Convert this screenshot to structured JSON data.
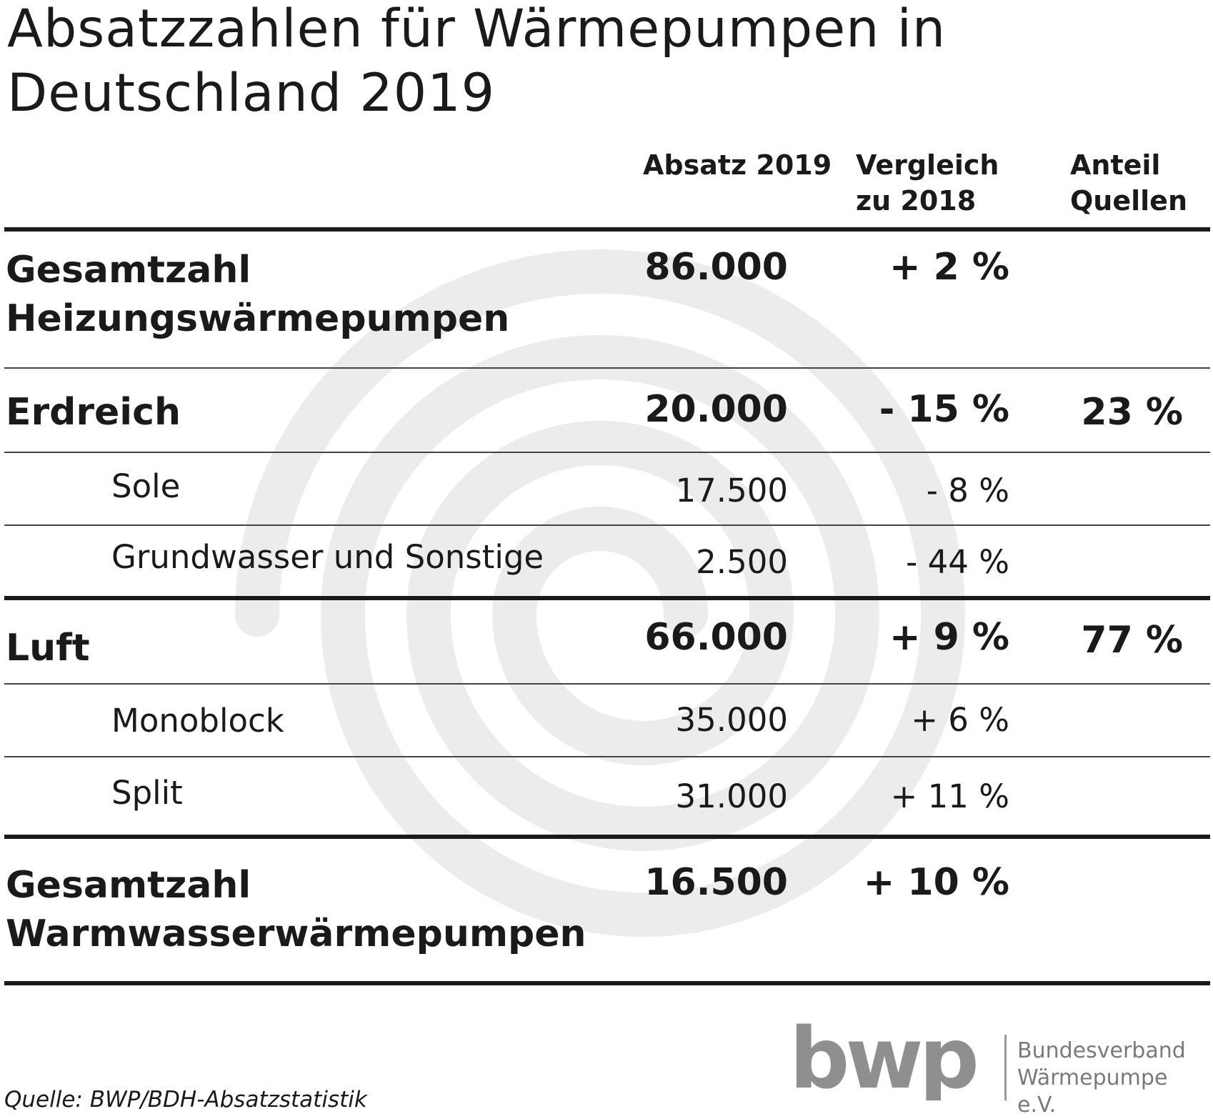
{
  "title": {
    "line1": "Absatzzahlen für Wärmepumpen in",
    "line2": "Deutschland 2019"
  },
  "columns": {
    "absatz": "Absatz 2019",
    "vergleich_1": "Vergleich",
    "vergleich_2": "zu 2018",
    "anteil_1": "Anteil",
    "anteil_2": "Quellen"
  },
  "rows": {
    "heiz_total": {
      "label_1": "Gesamtzahl",
      "label_2": "Heizungswärmepumpen",
      "absatz": "86.000",
      "vergleich": "+ 2 %"
    },
    "erdreich": {
      "label": "Erdreich",
      "absatz": "20.000",
      "vergleich": "- 15 %",
      "anteil": "23 %"
    },
    "sole": {
      "label": "Sole",
      "absatz": "17.500",
      "vergleich": "- 8 %"
    },
    "grundwasser": {
      "label": "Grundwasser und Sonstige",
      "absatz": "2.500",
      "vergleich": "- 44 %"
    },
    "luft": {
      "label": "Luft",
      "absatz": "66.000",
      "vergleich": "+ 9 %",
      "anteil": "77 %"
    },
    "monoblock": {
      "label": "Monoblock",
      "absatz": "35.000",
      "vergleich": "+ 6 %"
    },
    "split": {
      "label": "Split",
      "absatz": "31.000",
      "vergleich": "+ 11 %"
    },
    "ww_total": {
      "label_1": "Gesamtzahl",
      "label_2": "Warmwasserwärmepumpen",
      "absatz": "16.500",
      "vergleich": "+ 10 %"
    }
  },
  "footer": {
    "source": "Quelle: BWP/BDH-Absatzstatistik",
    "logo_word": "bwp",
    "org_1": "Bundesverband",
    "org_2": "Wärmepumpe e.V."
  },
  "colors": {
    "text": "#1a1a1a",
    "spiral": "#ececec",
    "logo": "#8f8f8f"
  }
}
